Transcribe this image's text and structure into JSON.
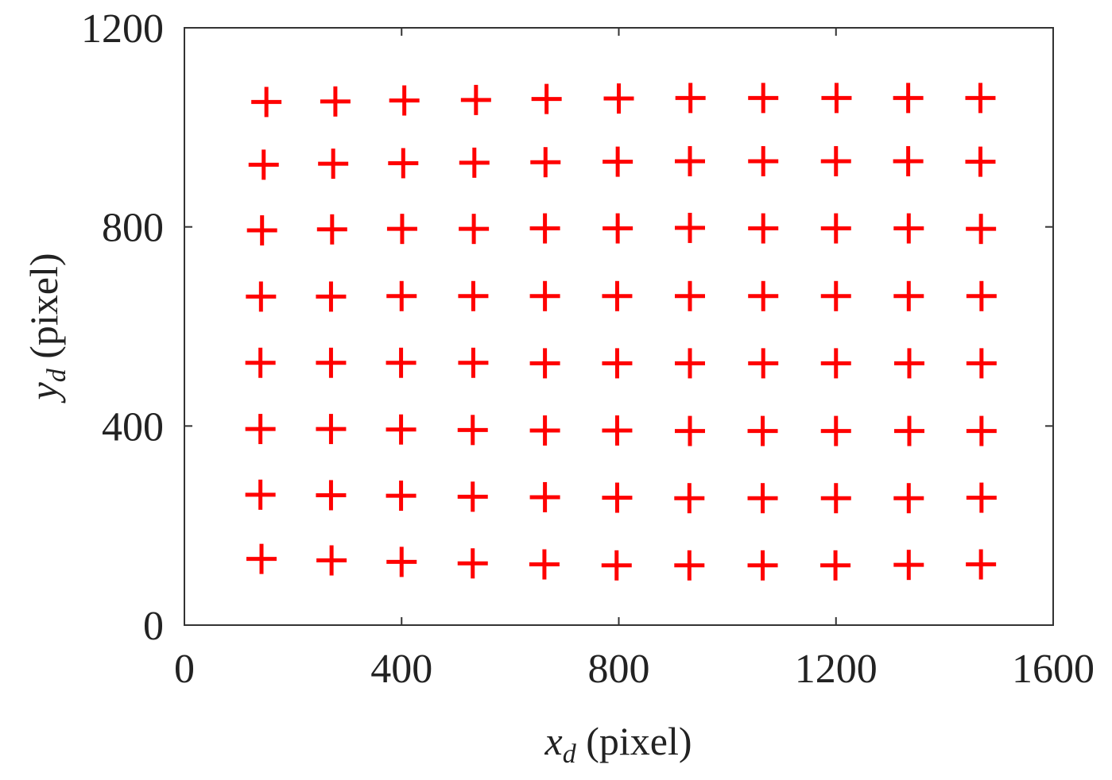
{
  "chart_data": {
    "type": "scatter",
    "marker": "plus",
    "marker_color": "#ff0000",
    "xlabel_var": "x",
    "xlabel_sub": "d",
    "xlabel_unit": " (pixel)",
    "ylabel_var": "y",
    "ylabel_sub": "d",
    "ylabel_unit": " (pixel)",
    "xlim": [
      0,
      1600
    ],
    "ylim": [
      0,
      1200
    ],
    "xticks": [
      0,
      400,
      800,
      1200,
      1600
    ],
    "yticks": [
      0,
      400,
      800,
      1200
    ],
    "grid": false,
    "rows": [
      {
        "y": [
          1051,
          1052,
          1054,
          1055,
          1057,
          1058,
          1059,
          1059,
          1059,
          1059,
          1059
        ],
        "x": [
          151,
          278,
          405,
          537,
          667,
          800,
          932,
          1066,
          1201,
          1333,
          1466
        ]
      },
      {
        "y": [
          925,
          927,
          928,
          929,
          930,
          931,
          932,
          932,
          932,
          932,
          931
        ],
        "x": [
          146,
          274,
          403,
          534,
          665,
          798,
          931,
          1066,
          1200,
          1333,
          1466
        ]
      },
      {
        "y": [
          793,
          795,
          796,
          796,
          797,
          797,
          798,
          797,
          797,
          797,
          796
        ],
        "x": [
          143,
          272,
          401,
          533,
          664,
          798,
          931,
          1066,
          1200,
          1334,
          1467
        ]
      },
      {
        "y": [
          660,
          660,
          661,
          661,
          661,
          661,
          661,
          661,
          661,
          661,
          661
        ],
        "x": [
          141,
          270,
          400,
          532,
          664,
          797,
          931,
          1066,
          1200,
          1334,
          1468
        ]
      },
      {
        "y": [
          527,
          527,
          527,
          527,
          526,
          526,
          526,
          526,
          526,
          526,
          526
        ],
        "x": [
          140,
          270,
          399,
          532,
          664,
          797,
          931,
          1066,
          1200,
          1335,
          1468
        ]
      },
      {
        "y": [
          394,
          394,
          393,
          392,
          391,
          391,
          390,
          390,
          390,
          390,
          390
        ],
        "x": [
          140,
          270,
          399,
          531,
          664,
          797,
          931,
          1065,
          1200,
          1335,
          1468
        ]
      },
      {
        "y": [
          262,
          261,
          260,
          258,
          257,
          256,
          255,
          255,
          255,
          255,
          256
        ],
        "x": [
          140,
          270,
          399,
          531,
          664,
          797,
          930,
          1065,
          1200,
          1334,
          1468
        ]
      },
      {
        "y": [
          133,
          130,
          127,
          124,
          122,
          120,
          120,
          120,
          120,
          121,
          122
        ],
        "x": [
          142,
          271,
          400,
          531,
          663,
          796,
          930,
          1065,
          1199,
          1334,
          1467
        ]
      }
    ]
  }
}
